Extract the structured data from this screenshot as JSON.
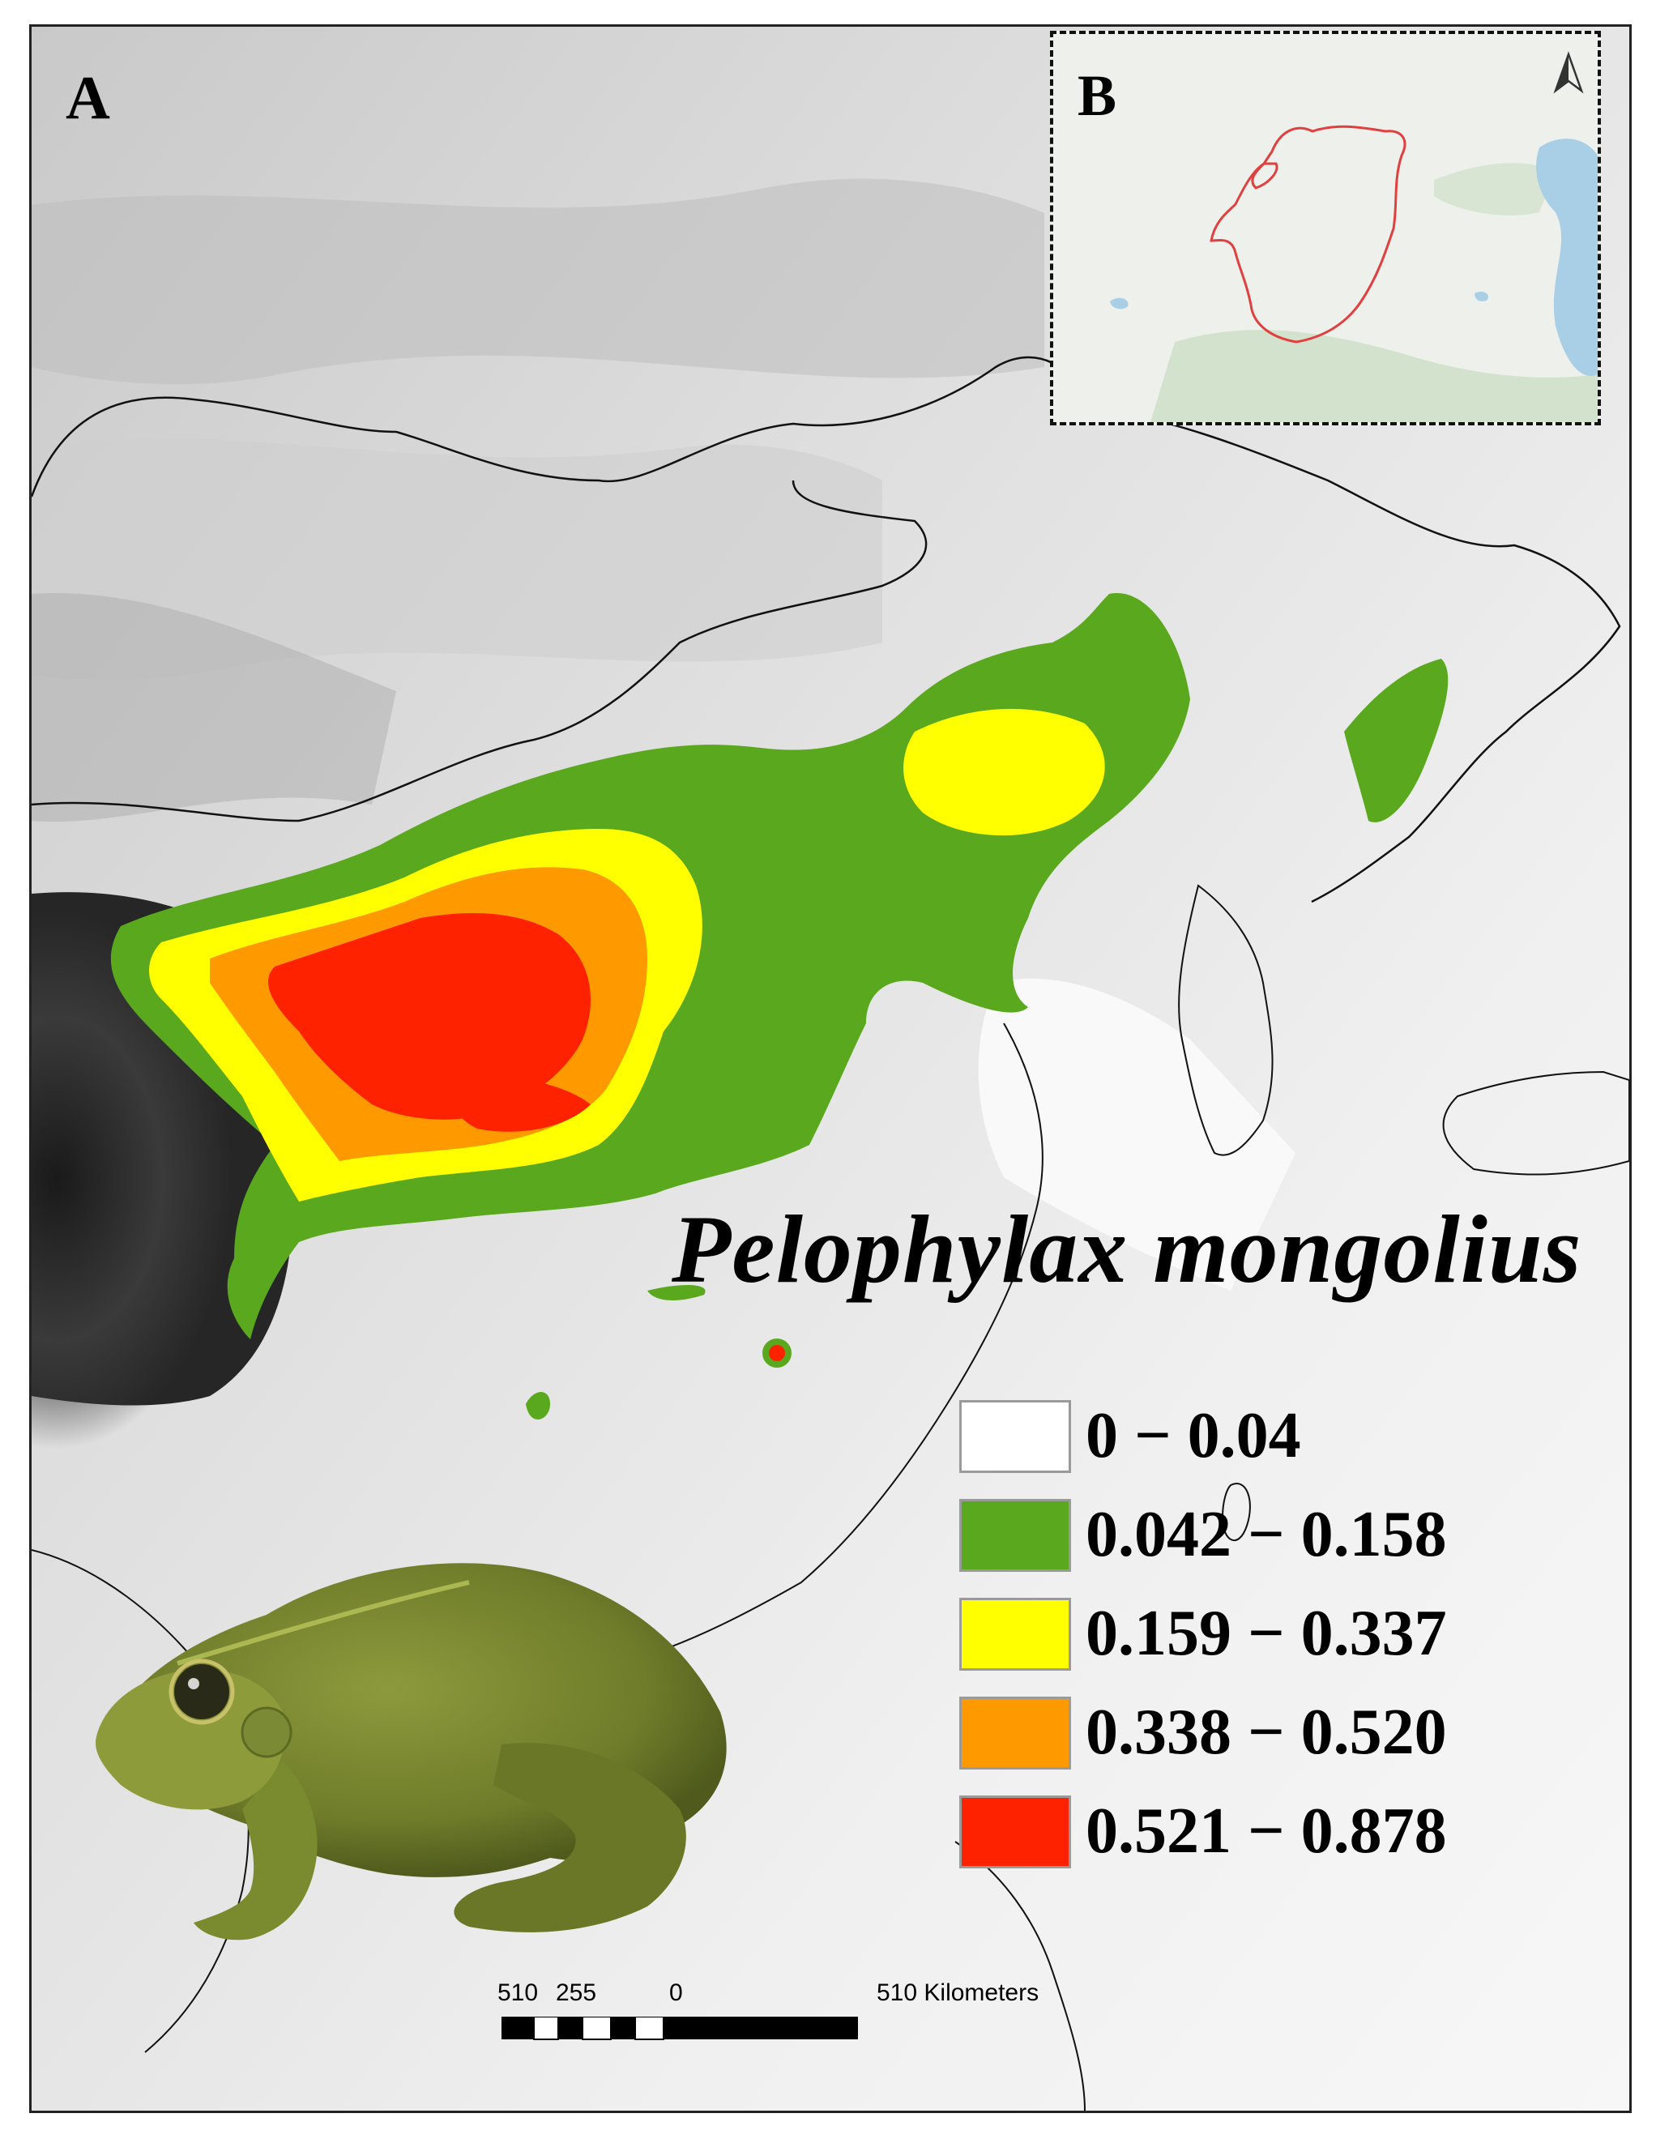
{
  "figure": {
    "panel_a_label": "A",
    "panel_b_label": "B",
    "species_name": "Pelophylax mongolius",
    "north_arrow_icon": "north-arrow-icon",
    "frog_photo_icon": "frog-photo"
  },
  "legend": {
    "items": [
      {
        "label": "0 − 0.04",
        "color": "#ffffff"
      },
      {
        "label": "0.042 − 0.158",
        "color": "#5aa81e"
      },
      {
        "label": "0.159 − 0.337",
        "color": "#ffff00"
      },
      {
        "label": "0.338 − 0.520",
        "color": "#ff9900"
      },
      {
        "label": "0.521 − 0.878",
        "color": "#ff2200"
      }
    ]
  },
  "scale_bar": {
    "ticks": [
      "510",
      "255",
      "0",
      "510 Kilometers"
    ]
  },
  "inset": {
    "range_outline_color": "#e04040",
    "water_color": "#a9cfe6"
  }
}
